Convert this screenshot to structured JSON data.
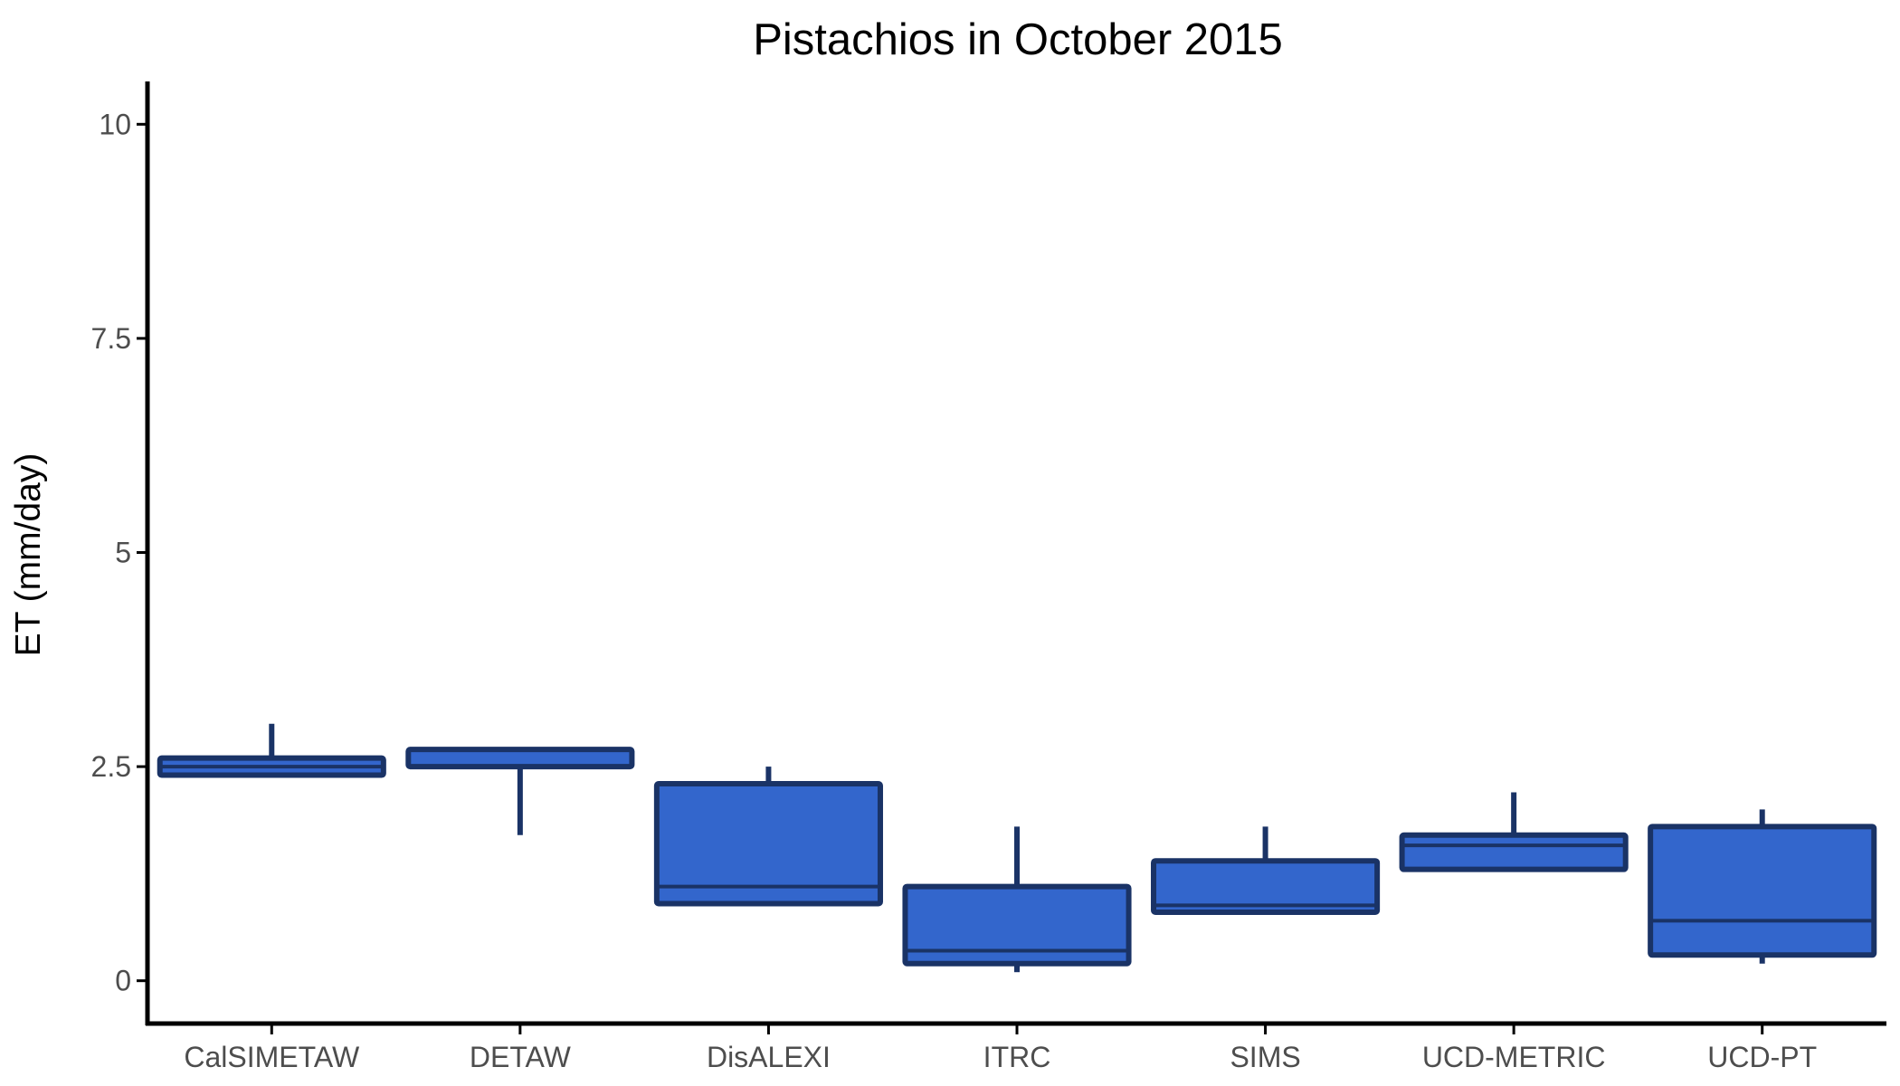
{
  "chart_data": {
    "type": "box",
    "title": "Pistachios in October 2015",
    "xlabel": "",
    "ylabel": "ET (mm/day)",
    "ylim": [
      -0.5,
      10.5
    ],
    "yticks": [
      0,
      2.5,
      5,
      7.5,
      10
    ],
    "ytick_labels": [
      "0",
      "2.5",
      "5",
      "7.5",
      "10"
    ],
    "categories": [
      "CalSIMETAW",
      "DETAW",
      "DisALEXI",
      "ITRC",
      "SIMS",
      "UCD-METRIC",
      "UCD-PT"
    ],
    "boxes": [
      {
        "category": "CalSIMETAW",
        "whisker_low": 2.4,
        "q1": 2.4,
        "median": 2.5,
        "q3": 2.6,
        "whisker_high": 3.0
      },
      {
        "category": "DETAW",
        "whisker_low": 1.7,
        "q1": 2.5,
        "median": 2.5,
        "q3": 2.7,
        "whisker_high": 2.7
      },
      {
        "category": "DisALEXI",
        "whisker_low": 0.9,
        "q1": 0.9,
        "median": 1.1,
        "q3": 2.3,
        "whisker_high": 2.5
      },
      {
        "category": "ITRC",
        "whisker_low": 0.1,
        "q1": 0.2,
        "median": 0.35,
        "q3": 1.1,
        "whisker_high": 1.8
      },
      {
        "category": "SIMS",
        "whisker_low": 0.8,
        "q1": 0.8,
        "median": 0.88,
        "q3": 1.4,
        "whisker_high": 1.8
      },
      {
        "category": "UCD-METRIC",
        "whisker_low": 1.3,
        "q1": 1.3,
        "median": 1.58,
        "q3": 1.7,
        "whisker_high": 2.2
      },
      {
        "category": "UCD-PT",
        "whisker_low": 0.2,
        "q1": 0.3,
        "median": 0.7,
        "q3": 1.8,
        "whisker_high": 2.0
      }
    ],
    "colors": {
      "box_fill": "#3366cc",
      "box_stroke": "#1a3366",
      "axis": "#000000",
      "tick_text": "#4d4d4d"
    },
    "grid": false,
    "legend": "none"
  }
}
